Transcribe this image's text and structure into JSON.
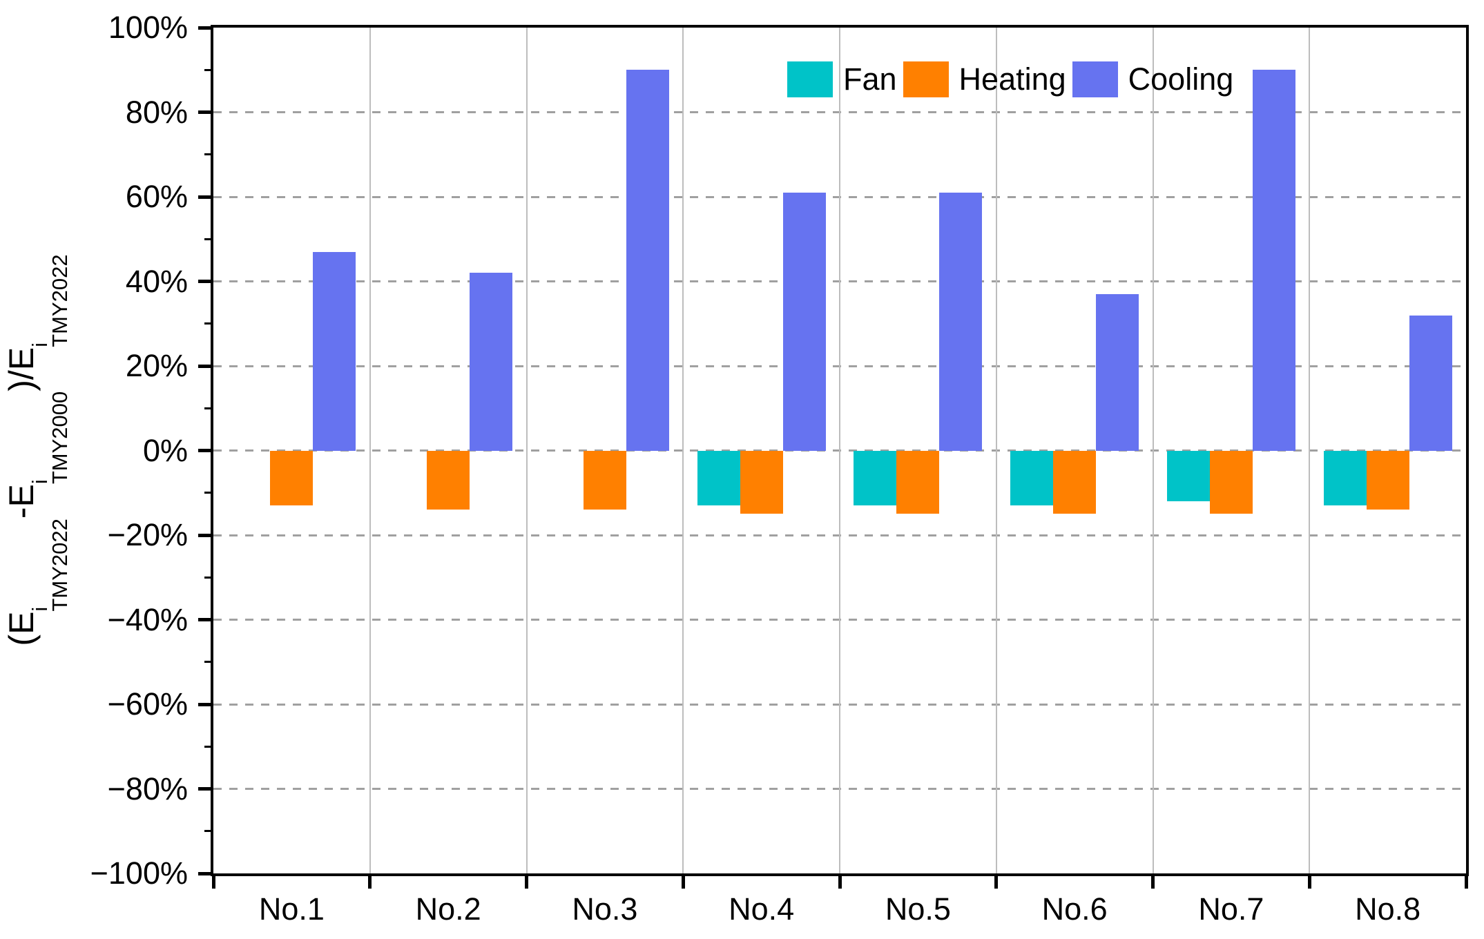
{
  "chart_data": {
    "type": "bar",
    "title": "",
    "categories": [
      "No.1",
      "No.2",
      "No.3",
      "No.4",
      "No.5",
      "No.6",
      "No.7",
      "No.8"
    ],
    "series": [
      {
        "name": "Fan",
        "color": "#00C3C8",
        "values": [
          0,
          0,
          0,
          -13,
          -13,
          -13,
          -12,
          -13
        ]
      },
      {
        "name": "Heating",
        "color": "#FF8000",
        "values": [
          -13,
          -14,
          -14,
          -15,
          -15,
          -15,
          -15,
          -14
        ]
      },
      {
        "name": "Cooling",
        "color": "#6673F0",
        "values": [
          47,
          42,
          90,
          61,
          61,
          37,
          90,
          32
        ]
      }
    ],
    "ylabel_segments": [
      {
        "text": "(E",
        "sup": "i",
        "sub": "TMY2022"
      },
      {
        "text": "-E",
        "sup": "i",
        "sub": "TMY2000"
      },
      {
        "text": ")/E",
        "sup": "i",
        "sub": "TMY2022"
      }
    ],
    "xlabel": "",
    "ylim": [
      -100,
      100
    ],
    "ytick_step": 20,
    "ytick_minor_step": 10,
    "ytick_labels": [
      "100%",
      "80%",
      "60%",
      "40%",
      "20%",
      "0%",
      "−20%",
      "−40%",
      "−60%",
      "−80%",
      "−100%"
    ],
    "legend": {
      "position": "top-center",
      "entries": [
        "Fan",
        "Heating",
        "Cooling"
      ]
    },
    "grid": {
      "horizontal": "dashed",
      "vertical": "solid"
    },
    "axis_color": "#000000",
    "h_gridline_color": "#A0A0A0",
    "v_gridline_color": "#BDBDBD",
    "background_color": "#FFFFFF"
  }
}
